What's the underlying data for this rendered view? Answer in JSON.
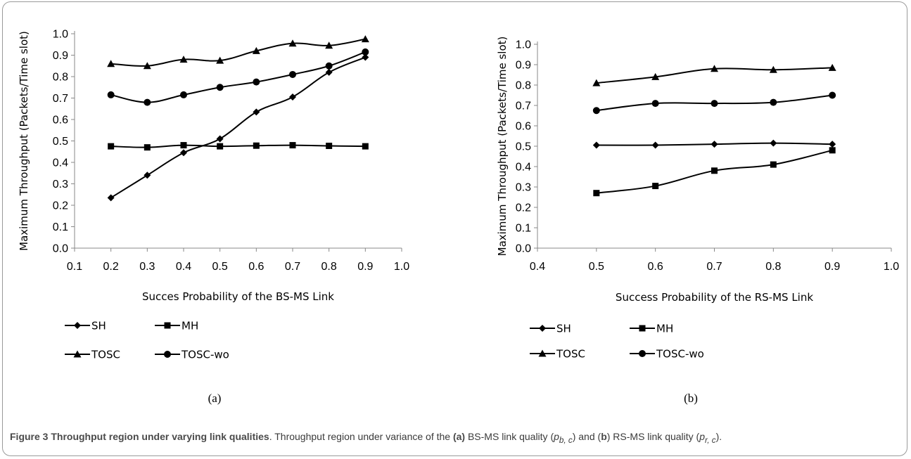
{
  "figure": {
    "caption_title": "Figure 3 Throughput region under varying link qualities",
    "caption_parts": [
      ". Throughput region under variance of the ",
      "(a)",
      " BS-MS link quality (",
      "p",
      "b, c",
      ") and (",
      "b",
      ") RS-MS link quality (",
      "p",
      "r, c",
      ")."
    ]
  },
  "series_styles": {
    "SH": {
      "marker": "diamond",
      "color": "#000000"
    },
    "MH": {
      "marker": "square",
      "color": "#000000"
    },
    "TOSC": {
      "marker": "triangle",
      "color": "#000000"
    },
    "TOSC-wo": {
      "marker": "circle",
      "color": "#000000"
    }
  },
  "chart_data": [
    {
      "type": "line",
      "panel_label": "(a)",
      "xlabel": "Succes Probability of the BS-MS Link",
      "ylabel": "Maximum Throughput (Packets/Time slot)",
      "xlim": [
        0.1,
        1.0
      ],
      "ylim": [
        0.0,
        1.0
      ],
      "x_ticks": [
        "0.1",
        "0.2",
        "0.3",
        "0.4",
        "0.5",
        "0.6",
        "0.7",
        "0.8",
        "0.9",
        "1.0"
      ],
      "y_ticks": [
        "0.0",
        "0.1",
        "0.2",
        "0.3",
        "0.4",
        "0.5",
        "0.6",
        "0.7",
        "0.8",
        "0.9",
        "1.0"
      ],
      "grid": false,
      "legend_position": "bottom",
      "x": [
        0.2,
        0.3,
        0.4,
        0.5,
        0.6,
        0.7,
        0.8,
        0.9
      ],
      "series": [
        {
          "name": "SH",
          "values": [
            0.235,
            0.34,
            0.445,
            0.51,
            0.635,
            0.705,
            0.82,
            0.89
          ]
        },
        {
          "name": "MH",
          "values": [
            0.475,
            0.47,
            0.48,
            0.475,
            0.478,
            0.48,
            0.477,
            0.475
          ]
        },
        {
          "name": "TOSC",
          "values": [
            0.86,
            0.85,
            0.88,
            0.875,
            0.92,
            0.955,
            0.945,
            0.975
          ]
        },
        {
          "name": "TOSC-wo",
          "values": [
            0.715,
            0.68,
            0.715,
            0.75,
            0.775,
            0.81,
            0.85,
            0.915
          ]
        }
      ]
    },
    {
      "type": "line",
      "panel_label": "(b)",
      "xlabel": "Success Probability of the RS-MS Link",
      "ylabel": "Maximum Throughput  (Packets/Time slot)",
      "xlim": [
        0.4,
        1.0
      ],
      "ylim": [
        0.0,
        1.0
      ],
      "x_ticks": [
        "0.4",
        "0.5",
        "0.6",
        "0.7",
        "0.8",
        "0.9",
        "1.0"
      ],
      "y_ticks": [
        "0.0",
        "0.1",
        "0.2",
        "0.3",
        "0.4",
        "0.5",
        "0.6",
        "0.7",
        "0.8",
        "0.9",
        "1.0"
      ],
      "grid": false,
      "legend_position": "bottom",
      "x": [
        0.5,
        0.6,
        0.7,
        0.8,
        0.9
      ],
      "series": [
        {
          "name": "SH",
          "values": [
            0.505,
            0.505,
            0.51,
            0.515,
            0.51
          ]
        },
        {
          "name": "MH",
          "values": [
            0.27,
            0.305,
            0.38,
            0.41,
            0.48
          ]
        },
        {
          "name": "TOSC",
          "values": [
            0.81,
            0.84,
            0.88,
            0.875,
            0.885
          ]
        },
        {
          "name": "TOSC-wo",
          "values": [
            0.675,
            0.71,
            0.71,
            0.715,
            0.75
          ]
        }
      ]
    }
  ]
}
